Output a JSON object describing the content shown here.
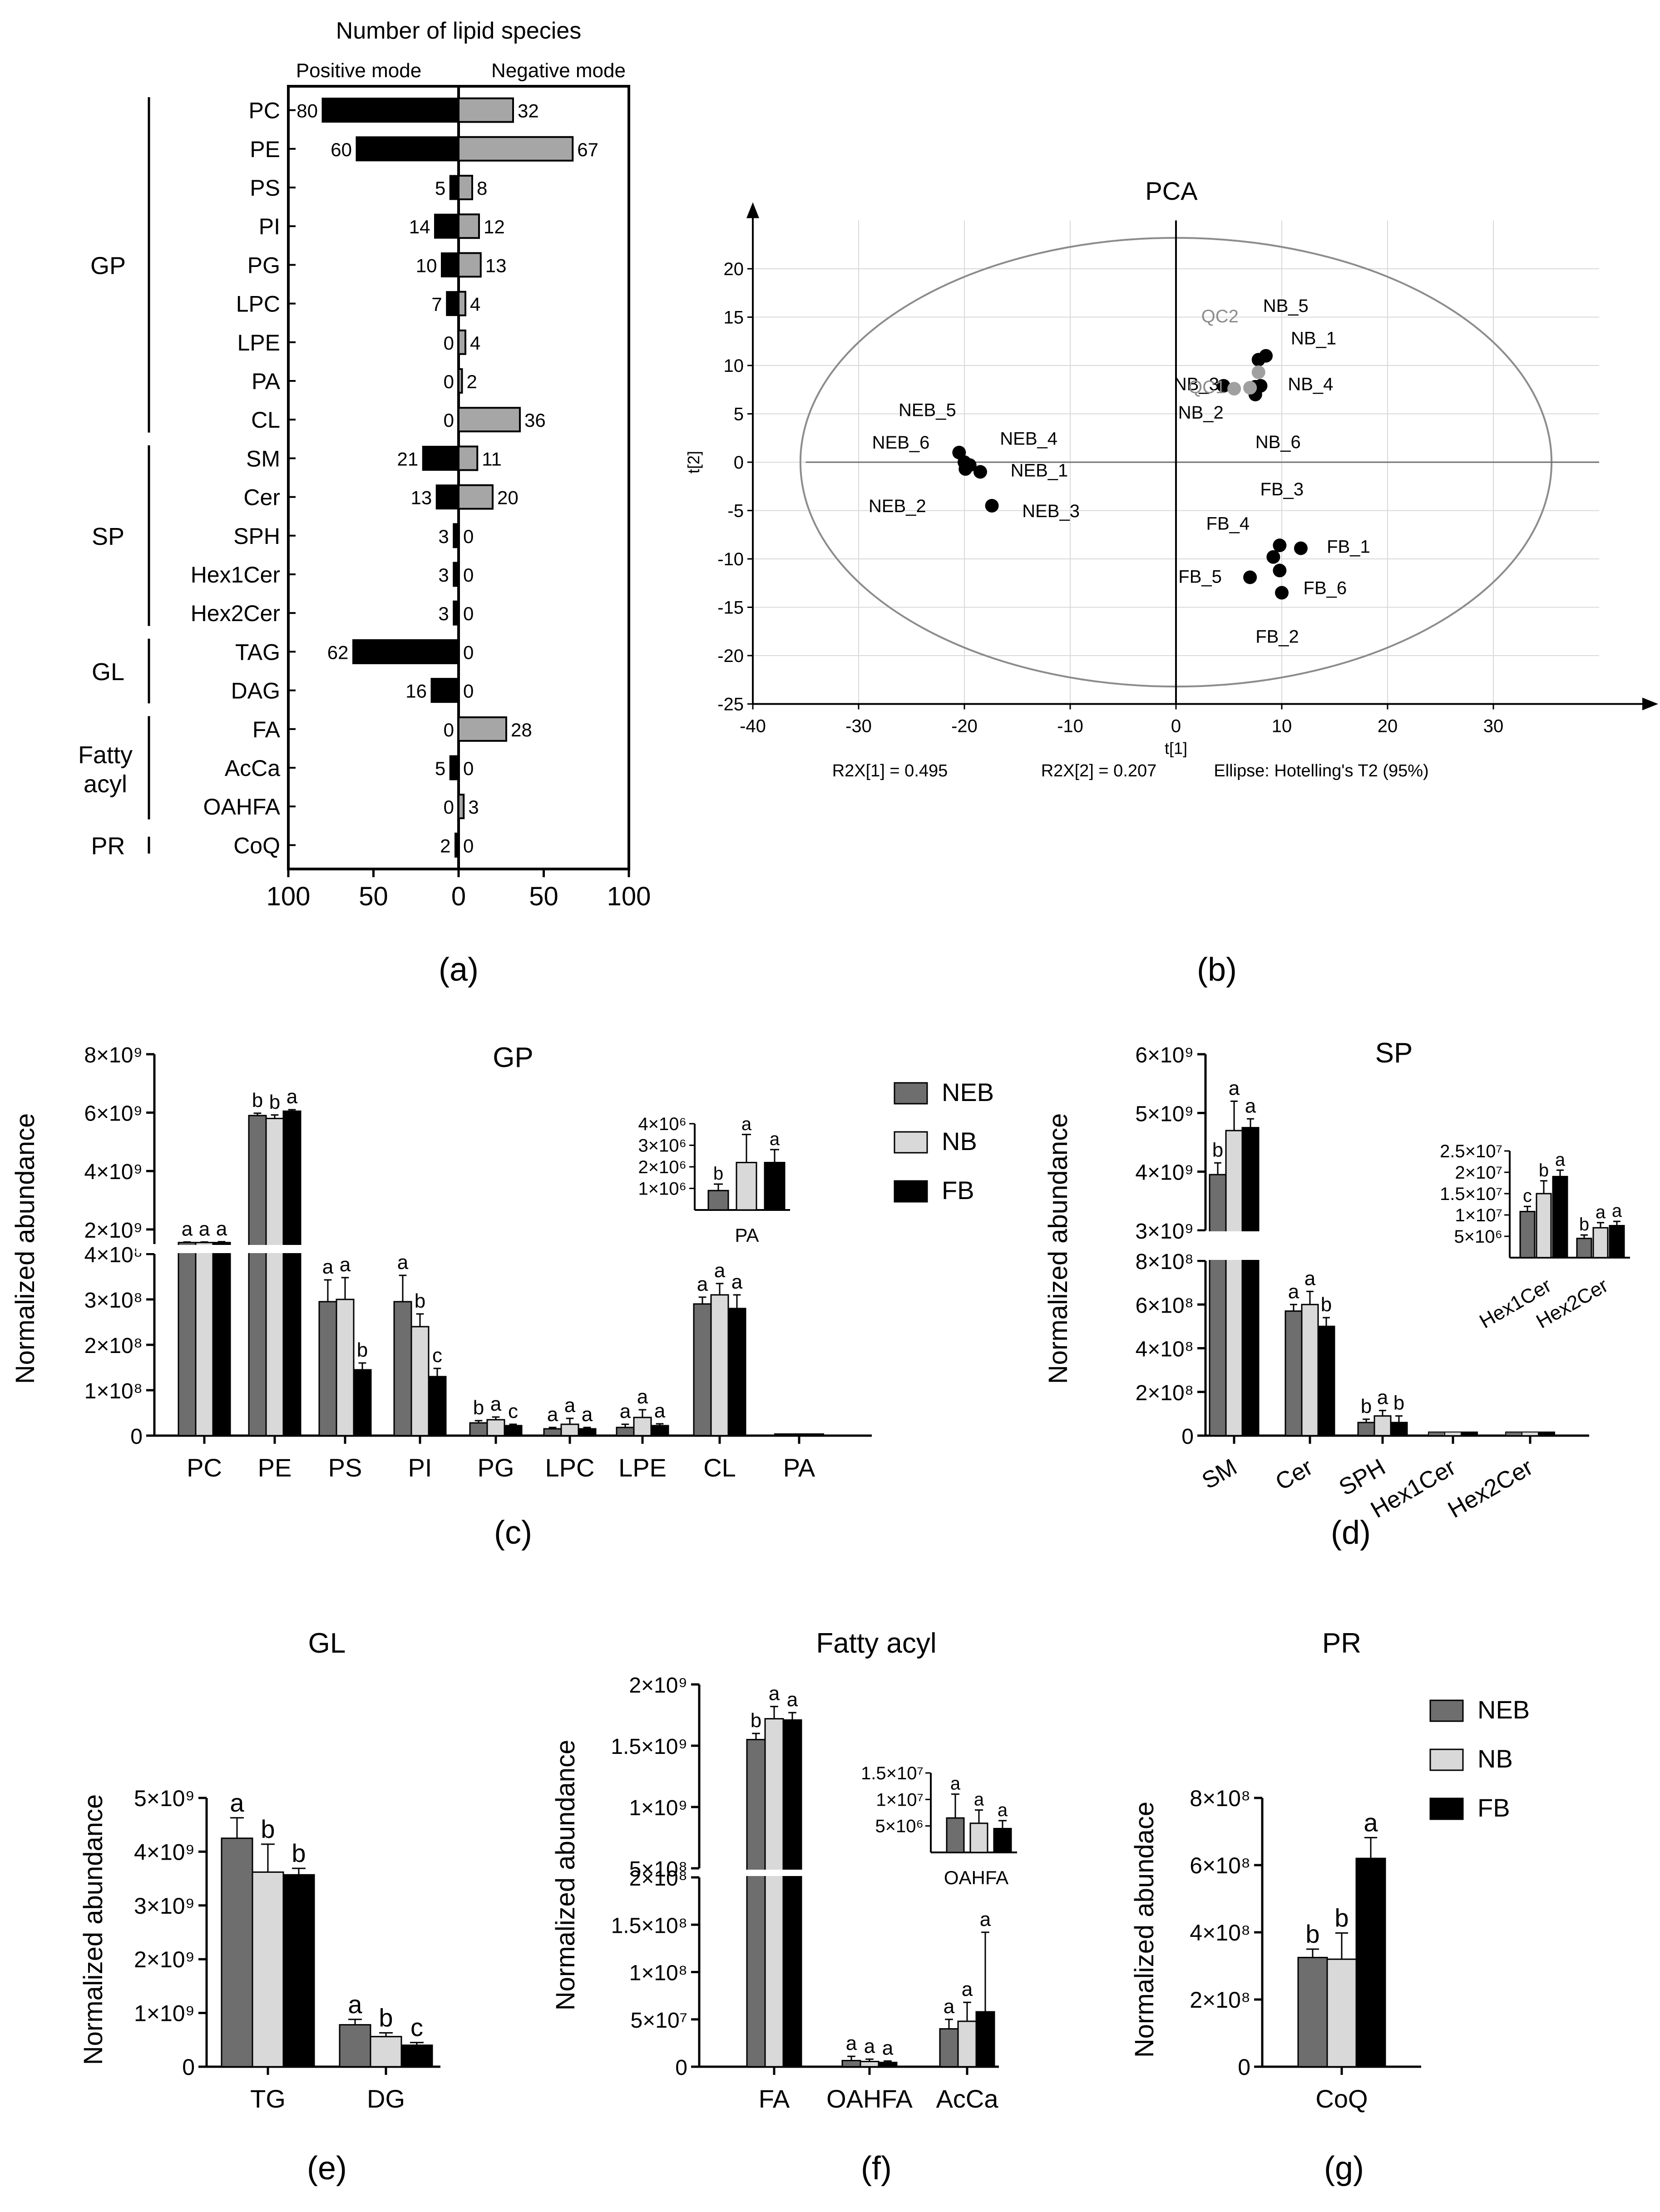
{
  "panel_labels": [
    "(a)",
    "(b)",
    "(c)",
    "(d)",
    "(e)",
    "(f)",
    "(g)"
  ],
  "colors": {
    "NEB": "#6e6e6e",
    "NB": "#d9d9d9",
    "FB": "#000000",
    "neg_bar": "#a6a6a6",
    "qc": "#a0a0a0"
  },
  "legend": [
    "NEB",
    "NB",
    "FB"
  ],
  "chart_data": [
    {
      "id": "a",
      "type": "bar",
      "title": "Number of lipid species",
      "left_label": "Positive mode",
      "right_label": "Negative mode",
      "categories": [
        "PC",
        "PE",
        "PS",
        "PI",
        "PG",
        "LPC",
        "LPE",
        "PA",
        "CL",
        "SM",
        "Cer",
        "SPH",
        "Hex1Cer",
        "Hex2Cer",
        "TAG",
        "DAG",
        "FA",
        "AcCa",
        "OAHFA",
        "CoQ"
      ],
      "series": [
        {
          "name": "Positive mode",
          "values": [
            80,
            60,
            5,
            14,
            10,
            7,
            0,
            0,
            0,
            21,
            13,
            3,
            3,
            3,
            62,
            16,
            0,
            5,
            0,
            2
          ]
        },
        {
          "name": "Negative mode",
          "values": [
            32,
            67,
            8,
            12,
            13,
            4,
            4,
            2,
            36,
            11,
            20,
            0,
            0,
            0,
            0,
            0,
            28,
            0,
            3,
            0
          ]
        }
      ],
      "groups": [
        {
          "label": "GP",
          "lines": [
            "GP"
          ],
          "from": 0,
          "to": 8
        },
        {
          "label": "SP",
          "lines": [
            "SP"
          ],
          "from": 9,
          "to": 13
        },
        {
          "label": "GL",
          "lines": [
            "GL"
          ],
          "from": 14,
          "to": 15
        },
        {
          "label": "Fatty acyl",
          "lines": [
            "Fatty",
            "acyl"
          ],
          "from": 16,
          "to": 18
        },
        {
          "label": "PR",
          "lines": [
            "PR"
          ],
          "from": 19,
          "to": 19
        }
      ],
      "xticks": [
        "100",
        "50",
        "0",
        "50",
        "100"
      ],
      "xlim": [
        -100,
        100
      ]
    },
    {
      "id": "b",
      "type": "scatter",
      "title": "PCA",
      "xlabel": "t[1]",
      "ylabel": "t[2]",
      "xlim": [
        -40,
        40
      ],
      "ylim": [
        -25,
        25
      ],
      "xticks": [
        -40,
        -30,
        -20,
        -10,
        0,
        10,
        20,
        30
      ],
      "yticks": [
        -25,
        -20,
        -15,
        -10,
        -5,
        0,
        5,
        10,
        15,
        20
      ],
      "ellipse": {
        "cx": 0,
        "cy": 0,
        "rx": 35.5,
        "ry": 23.2
      },
      "points": [
        {
          "label": "NEB_5",
          "x": -20.5,
          "y": 1.0,
          "group": "NEB"
        },
        {
          "label": "NEB_6",
          "x": -20.0,
          "y": 0.0,
          "group": "NEB"
        },
        {
          "label": "NEB_4",
          "x": -19.5,
          "y": -0.3,
          "group": "NEB"
        },
        {
          "label": "NEB_1",
          "x": -18.5,
          "y": -1.0,
          "group": "NEB"
        },
        {
          "label": "NEB_2",
          "x": -19.9,
          "y": -0.7,
          "group": "NEB"
        },
        {
          "label": "NEB_3",
          "x": -17.4,
          "y": -4.5,
          "group": "NEB"
        },
        {
          "label": "NB_5",
          "x": 7.8,
          "y": 10.6,
          "group": "NB"
        },
        {
          "label": "NB_1",
          "x": 8.5,
          "y": 11.0,
          "group": "NB"
        },
        {
          "label": "NB_4",
          "x": 8.0,
          "y": 7.9,
          "group": "NB"
        },
        {
          "label": "NB_3",
          "x": 4.5,
          "y": 7.9,
          "group": "NB"
        },
        {
          "label": "NB_2",
          "x": 7.5,
          "y": 7.8,
          "group": "NB"
        },
        {
          "label": "NB_6",
          "x": 7.5,
          "y": 7.0,
          "group": "NB"
        },
        {
          "label": "QC2",
          "x": 7.8,
          "y": 9.3,
          "group": "QC"
        },
        {
          "label": "QC1",
          "x": 5.5,
          "y": 7.6,
          "group": "QC"
        },
        {
          "label": "QC3",
          "x": 7.0,
          "y": 7.7,
          "group": "QC"
        },
        {
          "label": "FB_3",
          "x": 9.8,
          "y": -8.6,
          "group": "FB"
        },
        {
          "label": "FB_4",
          "x": 9.2,
          "y": -9.8,
          "group": "FB"
        },
        {
          "label": "FB_1",
          "x": 11.8,
          "y": -8.9,
          "group": "FB"
        },
        {
          "label": "FB_5",
          "x": 7.0,
          "y": -11.9,
          "group": "FB"
        },
        {
          "label": "FB_6",
          "x": 9.8,
          "y": -11.2,
          "group": "FB"
        },
        {
          "label": "FB_2",
          "x": 10.0,
          "y": -13.5,
          "group": "FB"
        }
      ],
      "footer": [
        "R2X[1] = 0.495",
        "R2X[2] = 0.207",
        "Ellipse: Hotelling's T2 (95%)"
      ]
    },
    {
      "id": "c",
      "type": "bar",
      "title": "GP",
      "ylabel": "Normalized abundance",
      "categories": [
        "PC",
        "PE",
        "PS",
        "PI",
        "PG",
        "LPC",
        "LPE",
        "CL",
        "PA"
      ],
      "series": [
        {
          "name": "NEB",
          "values": [
            1550000000.0,
            5900000000.0,
            295000000.0,
            295000000.0,
            28000000.0,
            15000000.0,
            18000000.0,
            290000000.0,
            900000.0
          ]
        },
        {
          "name": "NB",
          "values": [
            1550000000.0,
            5800000000.0,
            300000000.0,
            240000000.0,
            35000000.0,
            25000000.0,
            40000000.0,
            310000000.0,
            2200000.0
          ]
        },
        {
          "name": "FB",
          "values": [
            1550000000.0,
            6050000000.0,
            145000000.0,
            130000000.0,
            22000000.0,
            15000000.0,
            22000000.0,
            280000000.0,
            2200000.0
          ]
        }
      ],
      "errors": [
        [
          20000000.0,
          80000000.0,
          48000000.0,
          58000000.0,
          5000000.0,
          3000000.0,
          7000000.0,
          15000000.0,
          300000.0
        ],
        [
          20000000.0,
          120000000.0,
          48000000.0,
          28000000.0,
          6000000.0,
          13000000.0,
          17000000.0,
          25000000.0,
          1300000.0
        ],
        [
          30000000.0,
          50000000.0,
          15000000.0,
          18000000.0,
          3000000.0,
          3000000.0,
          4000000.0,
          30000000.0,
          600000.0
        ]
      ],
      "letters": [
        [
          "a",
          "a",
          "a"
        ],
        [
          "b",
          "b",
          "a"
        ],
        [
          "a",
          "a",
          "b"
        ],
        [
          "a",
          "b",
          "c"
        ],
        [
          "b",
          "a",
          "c"
        ],
        [
          "a",
          "a",
          "a"
        ],
        [
          "a",
          "a",
          "a"
        ],
        [
          "a",
          "a",
          "a"
        ],
        [
          "",
          "",
          ""
        ]
      ],
      "inset": {
        "category": "PA",
        "ytick_labels": [
          "1×10⁶",
          "2×10⁶",
          "3×10⁶",
          "4×10⁶"
        ],
        "letters": [
          "b",
          "a",
          "a"
        ]
      },
      "axis_break": true,
      "upper_ticks": [
        "2×10⁹",
        "4×10⁹",
        "6×10⁹",
        "8×10⁹"
      ],
      "lower_ticks": [
        "0",
        "1×10⁸",
        "2×10⁸",
        "3×10⁸",
        "4×10⁸"
      ]
    },
    {
      "id": "d",
      "type": "bar",
      "title": "SP",
      "ylabel": "Normalized abundance",
      "categories": [
        "SM",
        "Cer",
        "SPH",
        "Hex1Cer",
        "Hex2Cer"
      ],
      "series": [
        {
          "name": "NEB",
          "values": [
            3950000000.0,
            570000000.0,
            60000000.0,
            10800000.0,
            4500000.0
          ]
        },
        {
          "name": "NB",
          "values": [
            4700000000.0,
            600000000.0,
            90000000.0,
            15000000.0,
            7000000.0
          ]
        },
        {
          "name": "FB",
          "values": [
            4750000000.0,
            500000000.0,
            60000000.0,
            19000000.0,
            7500000.0
          ]
        }
      ],
      "errors": [
        [
          200000000.0,
          30000000.0,
          15000000.0,
          1200000.0,
          800000.0
        ],
        [
          500000000.0,
          60000000.0,
          25000000.0,
          3000000.0,
          1200000.0
        ],
        [
          150000000.0,
          40000000.0,
          30000000.0,
          1500000.0,
          1000000.0
        ]
      ],
      "letters": [
        [
          "b",
          "a",
          "a"
        ],
        [
          "a",
          "a",
          "b"
        ],
        [
          "b",
          "a",
          "b"
        ],
        [
          "c",
          "b",
          "a"
        ],
        [
          "b",
          "a",
          "a"
        ]
      ],
      "inset": {
        "categories": [
          "Hex1Cer",
          "Hex2Cer"
        ],
        "ytick_labels": [
          "5×10⁶",
          "1×10⁷",
          "1.5×10⁷",
          "2×10⁷",
          "2.5×10⁷"
        ]
      },
      "axis_break": true,
      "upper_ticks": [
        "3×10⁹",
        "4×10⁹",
        "5×10⁹",
        "6×10⁹"
      ],
      "lower_ticks": [
        "0",
        "2×10⁸",
        "4×10⁸",
        "6×10⁸",
        "8×10⁸"
      ]
    },
    {
      "id": "e",
      "type": "bar",
      "title": "GL",
      "ylabel": "Normalized abundance",
      "categories": [
        "TG",
        "DG"
      ],
      "series": [
        {
          "name": "NEB",
          "values": [
            4250000000.0,
            780000000.0
          ]
        },
        {
          "name": "NB",
          "values": [
            3620000000.0,
            560000000.0
          ]
        },
        {
          "name": "FB",
          "values": [
            3570000000.0,
            400000000.0
          ]
        }
      ],
      "errors": [
        [
          380000000.0,
          100000000.0
        ],
        [
          520000000.0,
          70000000.0
        ],
        [
          120000000.0,
          50000000.0
        ]
      ],
      "letters": [
        [
          "a",
          "b",
          "b"
        ],
        [
          "a",
          "b",
          "c"
        ]
      ],
      "ylim": [
        0,
        5000000000.0
      ],
      "yticks": [
        0,
        1000000000.0,
        2000000000.0,
        3000000000.0,
        4000000000.0,
        5000000000.0
      ],
      "ytick_labels": [
        "0",
        "1×10⁹",
        "2×10⁹",
        "3×10⁹",
        "4×10⁹",
        "5×10⁹"
      ]
    },
    {
      "id": "f",
      "type": "bar",
      "title": "Fatty acyl",
      "ylabel": "Normalized abundance",
      "categories": [
        "FA",
        "OAHFA",
        "AcCa"
      ],
      "series": [
        {
          "name": "NEB",
          "values": [
            1550000000.0,
            6500000.0,
            40000000.0
          ]
        },
        {
          "name": "NB",
          "values": [
            1720000000.0,
            5500000.0,
            48000000.0
          ]
        },
        {
          "name": "FB",
          "values": [
            1710000000.0,
            4500000.0,
            58000000.0
          ]
        }
      ],
      "errors": [
        [
          50000000.0,
          4500000.0,
          10000000.0
        ],
        [
          100000000.0,
          2500000.0,
          20000000.0
        ],
        [
          60000000.0,
          1500000.0,
          84000000.0
        ]
      ],
      "letters": [
        [
          "b",
          "a",
          "a"
        ],
        [
          "a",
          "a",
          "a"
        ],
        [
          "a",
          "a",
          "a"
        ]
      ],
      "inset": {
        "category": "OAHFA",
        "ytick_labels": [
          "5×10⁶",
          "1×10⁷",
          "1.5×10⁷"
        ]
      },
      "axis_break": true,
      "upper_ticks": [
        "5×10⁸",
        "1×10⁹",
        "1.5×10⁹",
        "2×10⁹"
      ],
      "lower_ticks": [
        "0",
        "5×10⁷",
        "1×10⁸",
        "1.5×10⁸",
        "2×10⁸"
      ]
    },
    {
      "id": "g",
      "type": "bar",
      "title": "PR",
      "ylabel": "Normalized abundace",
      "categories": [
        "CoQ"
      ],
      "series": [
        {
          "name": "NEB",
          "values": [
            325000000.0
          ]
        },
        {
          "name": "NB",
          "values": [
            320000000.0
          ]
        },
        {
          "name": "FB",
          "values": [
            620000000.0
          ]
        }
      ],
      "errors": [
        [
          25000000.0
        ],
        [
          78000000.0
        ],
        [
          62000000.0
        ]
      ],
      "letters": [
        [
          "b",
          "b",
          "a"
        ]
      ],
      "ylim": [
        0,
        800000000.0
      ],
      "yticks": [
        0,
        200000000.0,
        400000000.0,
        600000000.0,
        800000000.0
      ],
      "ytick_labels": [
        "0",
        "2×10⁸",
        "4×10⁸",
        "6×10⁸",
        "8×10⁸"
      ]
    }
  ]
}
